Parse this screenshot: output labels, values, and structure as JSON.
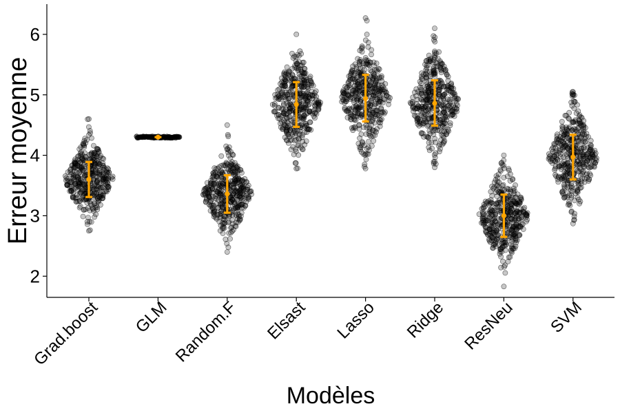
{
  "chart_data": {
    "type": "scatter",
    "subtype": "beeswarm with mean ± sd error bars",
    "xlabel": "Modèles",
    "ylabel": "Erreur moyenne",
    "categories": [
      "Grad.boost",
      "GLM",
      "Random.F",
      "Elsast",
      "Lasso",
      "Ridge",
      "ResNeu",
      "SVM"
    ],
    "ylim": [
      1.65,
      6.5
    ],
    "yticks": [
      2,
      3,
      4,
      5,
      6
    ],
    "grid": false,
    "point_color": "#000000",
    "errorbar_color": "#FFA500",
    "series": [
      {
        "category": "Grad.boost",
        "mean": 3.6,
        "lower": 3.31,
        "upper": 3.89,
        "min": 2.75,
        "max": 4.6
      },
      {
        "category": "GLM",
        "mean": 4.3,
        "lower": 4.3,
        "upper": 4.3,
        "min": 4.3,
        "max": 4.3
      },
      {
        "category": "Random.F",
        "mean": 3.36,
        "lower": 3.05,
        "upper": 3.67,
        "min": 2.4,
        "max": 4.5
      },
      {
        "category": "Elsast",
        "mean": 4.84,
        "lower": 4.47,
        "upper": 5.21,
        "min": 3.78,
        "max": 6.0
      },
      {
        "category": "Lasso",
        "mean": 4.94,
        "lower": 4.56,
        "upper": 5.33,
        "min": 3.78,
        "max": 6.27
      },
      {
        "category": "Ridge",
        "mean": 4.86,
        "lower": 4.49,
        "upper": 5.24,
        "min": 3.8,
        "max": 6.1
      },
      {
        "category": "ResNeu",
        "mean": 3.0,
        "lower": 2.65,
        "upper": 3.35,
        "min": 1.83,
        "max": 4.0
      },
      {
        "category": "SVM",
        "mean": 3.97,
        "lower": 3.6,
        "upper": 4.34,
        "min": 2.87,
        "max": 5.05
      }
    ]
  }
}
